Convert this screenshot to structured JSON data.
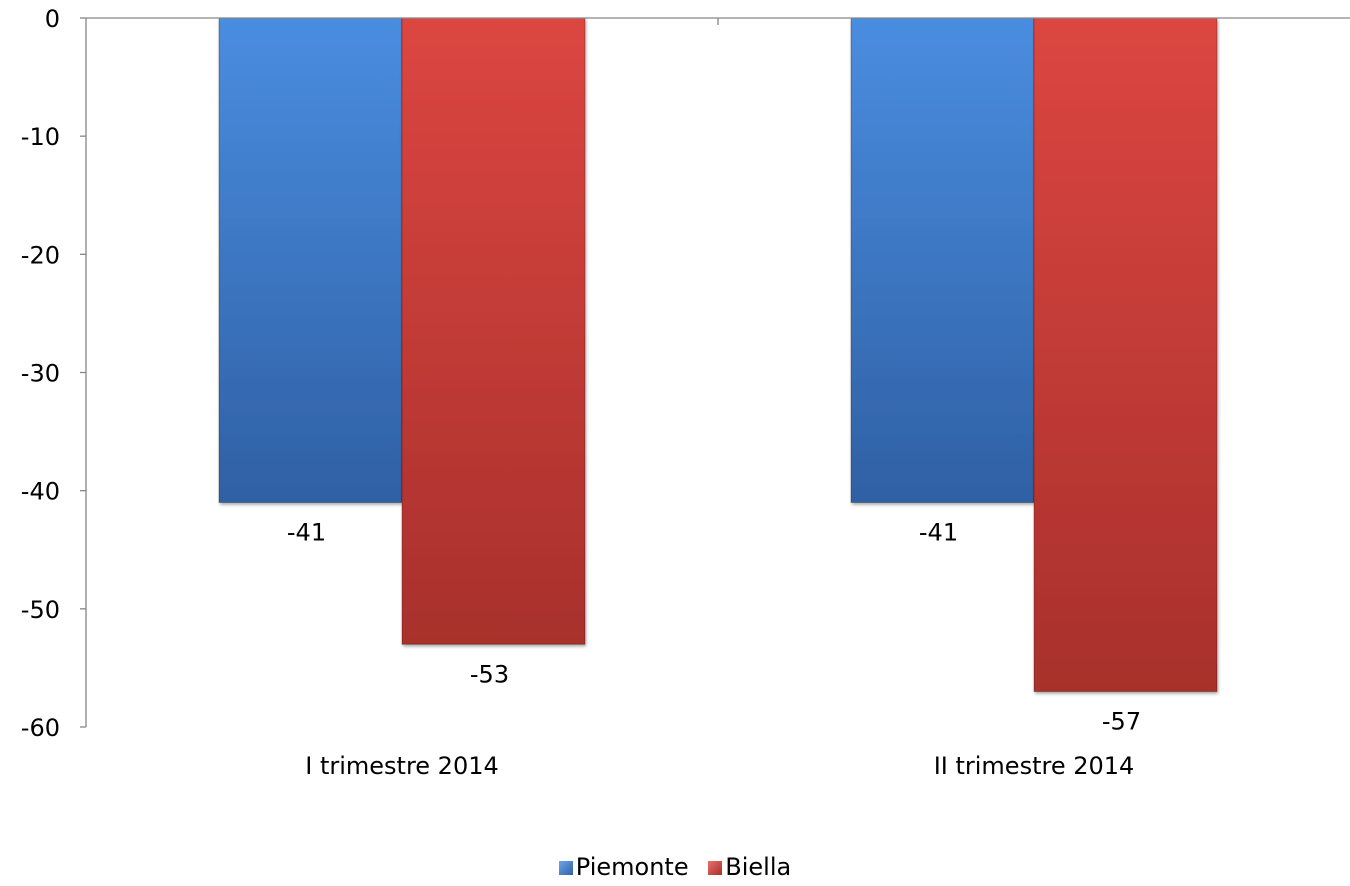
{
  "chart_data": {
    "type": "bar",
    "categories": [
      "I trimestre 2014",
      "II trimestre 2014"
    ],
    "series": [
      {
        "name": "Piemonte",
        "values": [
          -41,
          -41
        ],
        "color": "#3a78c9"
      },
      {
        "name": "Biella",
        "values": [
          -53,
          -57
        ],
        "color": "#c43a36"
      }
    ],
    "ylim": [
      -60,
      0
    ],
    "yticks": [
      0,
      -10,
      -20,
      -30,
      -40,
      -50,
      -60
    ],
    "ytick_labels": [
      "0",
      "-10",
      "-20",
      "-30",
      "-40",
      "-50",
      "-60"
    ],
    "data_labels": [
      [
        "-41",
        "-41"
      ],
      [
        "-53",
        "-57"
      ]
    ],
    "legend_position": "bottom",
    "grid": false
  }
}
